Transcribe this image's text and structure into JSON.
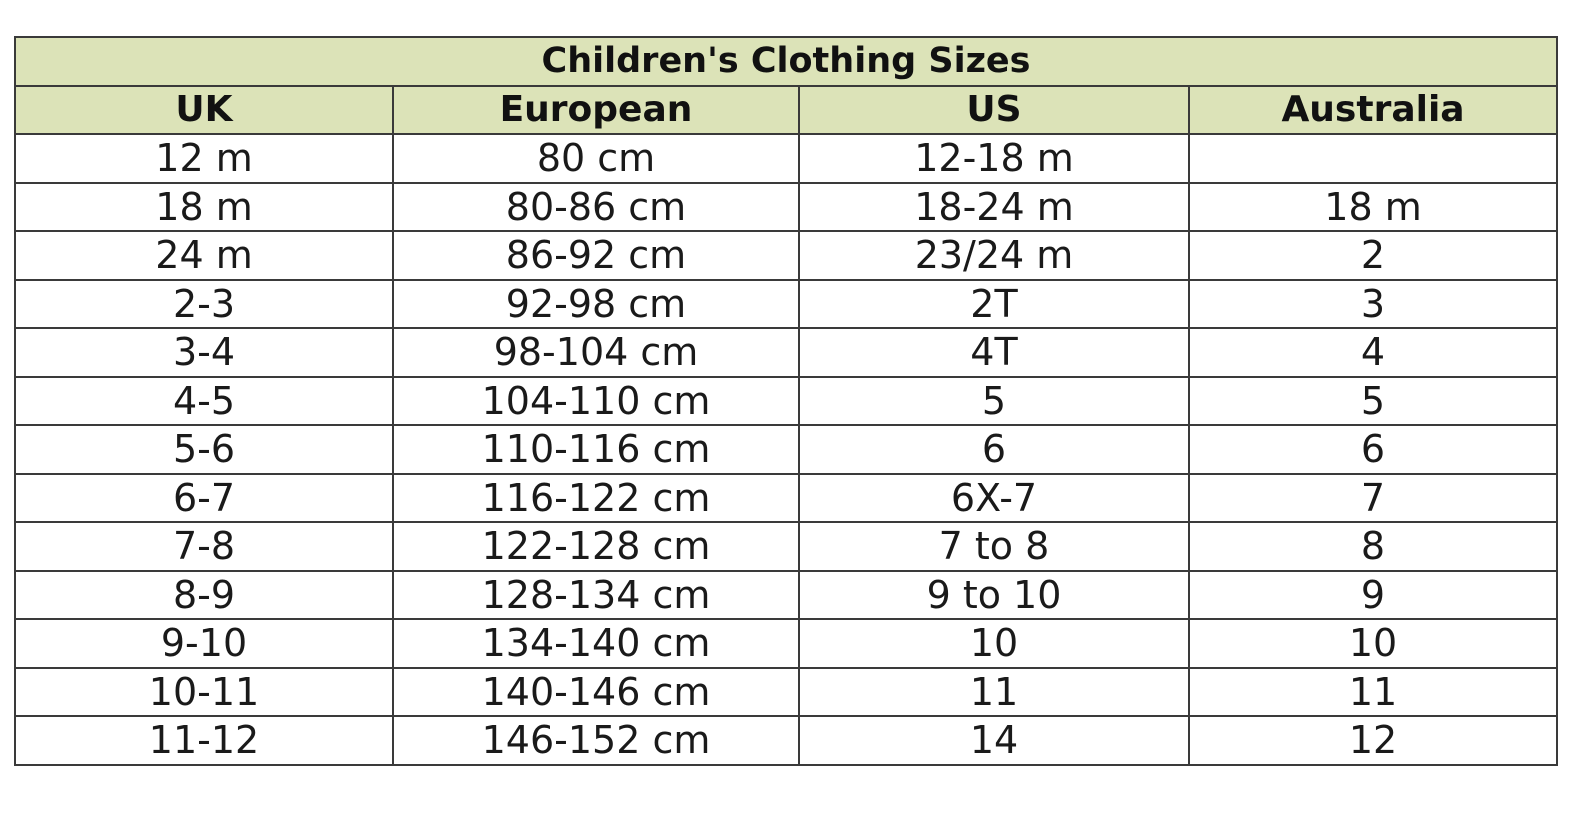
{
  "table": {
    "title": "Children's Clothing Sizes",
    "header_color": "#dce3b8",
    "columns": [
      "UK",
      "European",
      "US",
      "Australia"
    ],
    "rows": [
      [
        "12 m",
        "80 cm",
        "12-18 m",
        ""
      ],
      [
        "18 m",
        "80-86 cm",
        "18-24 m",
        "18 m"
      ],
      [
        "24 m",
        "86-92 cm",
        "23/24 m",
        "2"
      ],
      [
        "2-3",
        "92-98 cm",
        "2T",
        "3"
      ],
      [
        "3-4",
        "98-104 cm",
        "4T",
        "4"
      ],
      [
        "4-5",
        "104-110 cm",
        "5",
        "5"
      ],
      [
        "5-6",
        "110-116 cm",
        "6",
        "6"
      ],
      [
        "6-7",
        "116-122 cm",
        "6X-7",
        "7"
      ],
      [
        "7-8",
        "122-128 cm",
        "7 to 8",
        "8"
      ],
      [
        "8-9",
        "128-134 cm",
        "9 to 10",
        "9"
      ],
      [
        "9-10",
        "134-140 cm",
        "10",
        "10"
      ],
      [
        "10-11",
        "140-146 cm",
        "11",
        "11"
      ],
      [
        "11-12",
        "146-152 cm",
        "14",
        "12"
      ]
    ]
  }
}
